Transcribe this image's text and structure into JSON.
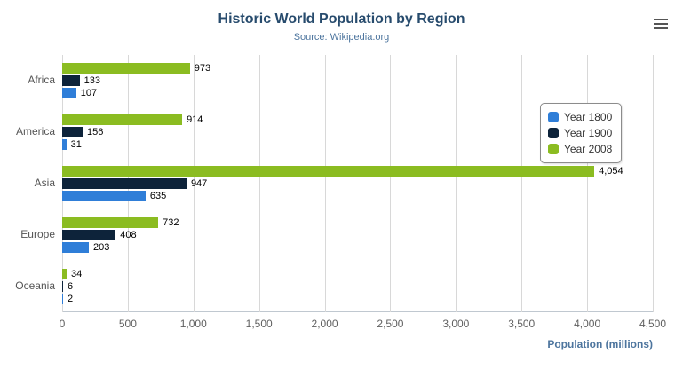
{
  "chart": {
    "title": "Historic World Population by Region",
    "subtitle": "Source: Wikipedia.org",
    "menu_icon": "hamburger-menu-icon"
  },
  "chart_data": {
    "type": "bar",
    "orientation": "horizontal",
    "title": "Historic World Population by Region",
    "subtitle": "Source: Wikipedia.org",
    "categories": [
      "Africa",
      "America",
      "Asia",
      "Europe",
      "Oceania"
    ],
    "series": [
      {
        "name": "Year 1800",
        "color": "#2f7ed8",
        "values": [
          107,
          31,
          635,
          203,
          2
        ]
      },
      {
        "name": "Year 1900",
        "color": "#0d233a",
        "values": [
          133,
          156,
          947,
          408,
          6
        ]
      },
      {
        "name": "Year 2008",
        "color": "#8bbc21",
        "values": [
          973,
          914,
          4054,
          732,
          34
        ]
      }
    ],
    "display_order_top_to_bottom": [
      "Year 2008",
      "Year 1900",
      "Year 1800"
    ],
    "xlabel": "Population (millions)",
    "ylabel": "",
    "xlim": [
      0,
      4500
    ],
    "x_ticks": [
      0,
      500,
      1000,
      1500,
      2000,
      2500,
      3000,
      3500,
      4000,
      4500
    ],
    "x_tick_labels": [
      "0",
      "500",
      "1,000",
      "1,500",
      "2,000",
      "2,500",
      "3,000",
      "3,500",
      "4,000",
      "4,500"
    ],
    "data_labels": {
      "Africa": {
        "Year 1800": "107",
        "Year 1900": "133",
        "Year 2008": "973"
      },
      "America": {
        "Year 1800": "31",
        "Year 1900": "156",
        "Year 2008": "914"
      },
      "Asia": {
        "Year 1800": "635",
        "Year 1900": "947",
        "Year 2008": "4,054"
      },
      "Europe": {
        "Year 1800": "203",
        "Year 1900": "408",
        "Year 2008": "732"
      },
      "Oceania": {
        "Year 1800": "2",
        "Year 1900": "6",
        "Year 2008": "34"
      }
    },
    "legend_position": "right",
    "grid": true
  },
  "colors": {
    "title": "#274b6d",
    "subtitle": "#4d759e",
    "axis_title": "#4d759e",
    "tick_label": "#606060",
    "gridline": "#d8d8d8",
    "series_1800": "#2f7ed8",
    "series_1900": "#0d233a",
    "series_2008": "#8bbc21"
  }
}
